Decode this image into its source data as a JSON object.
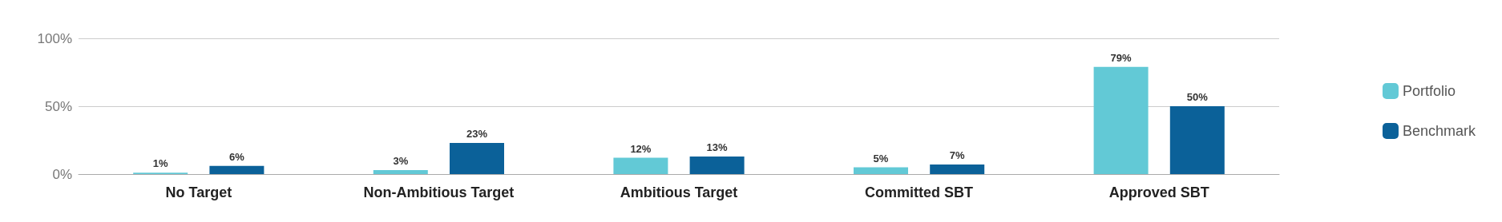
{
  "chart_data": {
    "type": "bar",
    "categories": [
      "No Target",
      "Non-Ambitious Target",
      "Ambitious Target",
      "Committed SBT",
      "Approved SBT"
    ],
    "series": [
      {
        "name": "Portfolio",
        "color": "#62c9d6",
        "values": [
          1,
          3,
          12,
          5,
          79
        ],
        "value_labels": [
          "1%",
          "3%",
          "12%",
          "5%",
          "79%"
        ]
      },
      {
        "name": "Benchmark",
        "color": "#0b6199",
        "values": [
          6,
          23,
          13,
          7,
          50
        ],
        "value_labels": [
          "6%",
          "23%",
          "13%",
          "7%",
          "50%"
        ]
      }
    ],
    "ylim": [
      0,
      100
    ],
    "yticks": [
      {
        "value": 0,
        "label": "0%"
      },
      {
        "value": 50,
        "label": "50%"
      },
      {
        "value": 100,
        "label": "100%"
      }
    ],
    "grid": "y",
    "legend": "right"
  }
}
